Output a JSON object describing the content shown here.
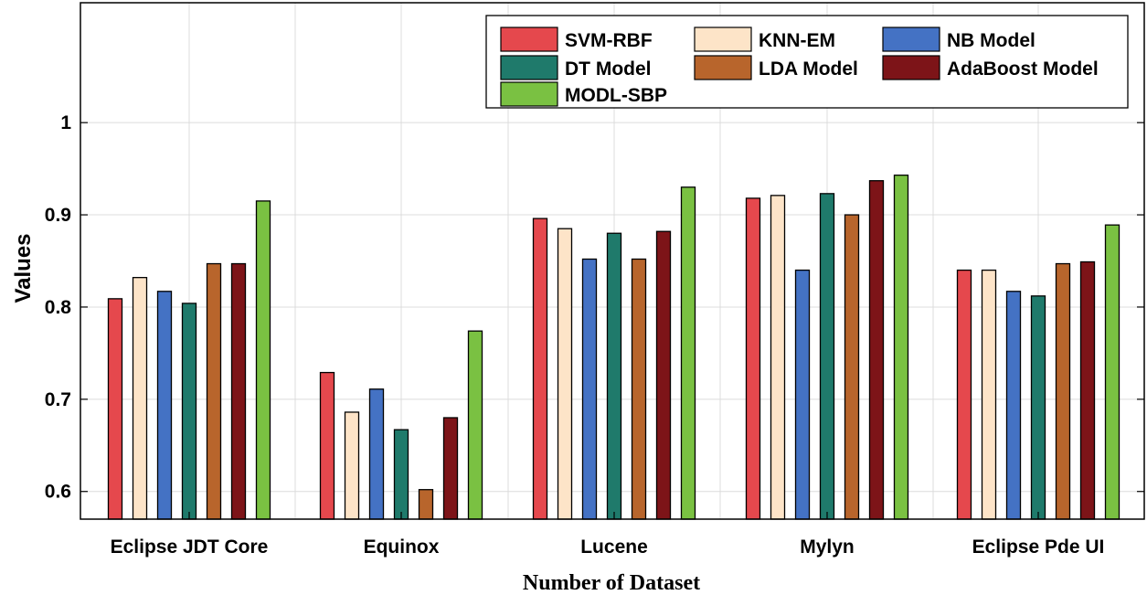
{
  "chart_data": {
    "type": "bar",
    "title": "",
    "xlabel": "Number of Dataset",
    "ylabel": "Values",
    "ylim": [
      0.57,
      1.13
    ],
    "yticks": [
      0.6,
      0.7,
      0.8,
      0.9,
      1.0
    ],
    "ytick_labels": [
      "0.6",
      "0.7",
      "0.8",
      "0.9",
      "1"
    ],
    "grid": true,
    "legend_position": "top-right",
    "categories": [
      "Eclipse JDT Core",
      "Equinox",
      "Lucene",
      "Mylyn",
      "Eclipse Pde UI"
    ],
    "series": [
      {
        "name": "SVM-RBF",
        "color": "#e5484d",
        "values": [
          0.809,
          0.729,
          0.896,
          0.918,
          0.84
        ]
      },
      {
        "name": "KNN-EM",
        "color": "#fde4c8",
        "values": [
          0.832,
          0.686,
          0.885,
          0.921,
          0.84
        ]
      },
      {
        "name": "NB Model",
        "color": "#4472c4",
        "values": [
          0.817,
          0.711,
          0.852,
          0.84,
          0.817
        ]
      },
      {
        "name": "DT Model",
        "color": "#1f7a6b",
        "values": [
          0.804,
          0.667,
          0.88,
          0.923,
          0.812
        ]
      },
      {
        "name": "LDA Model",
        "color": "#b8652c",
        "values": [
          0.847,
          0.602,
          0.852,
          0.9,
          0.847
        ]
      },
      {
        "name": "AdaBoost Model",
        "color": "#7d1418",
        "values": [
          0.847,
          0.68,
          0.882,
          0.937,
          0.849
        ]
      },
      {
        "name": "MODL-SBP",
        "color": "#7ac142",
        "values": [
          0.915,
          0.774,
          0.93,
          0.943,
          0.889
        ]
      }
    ]
  }
}
